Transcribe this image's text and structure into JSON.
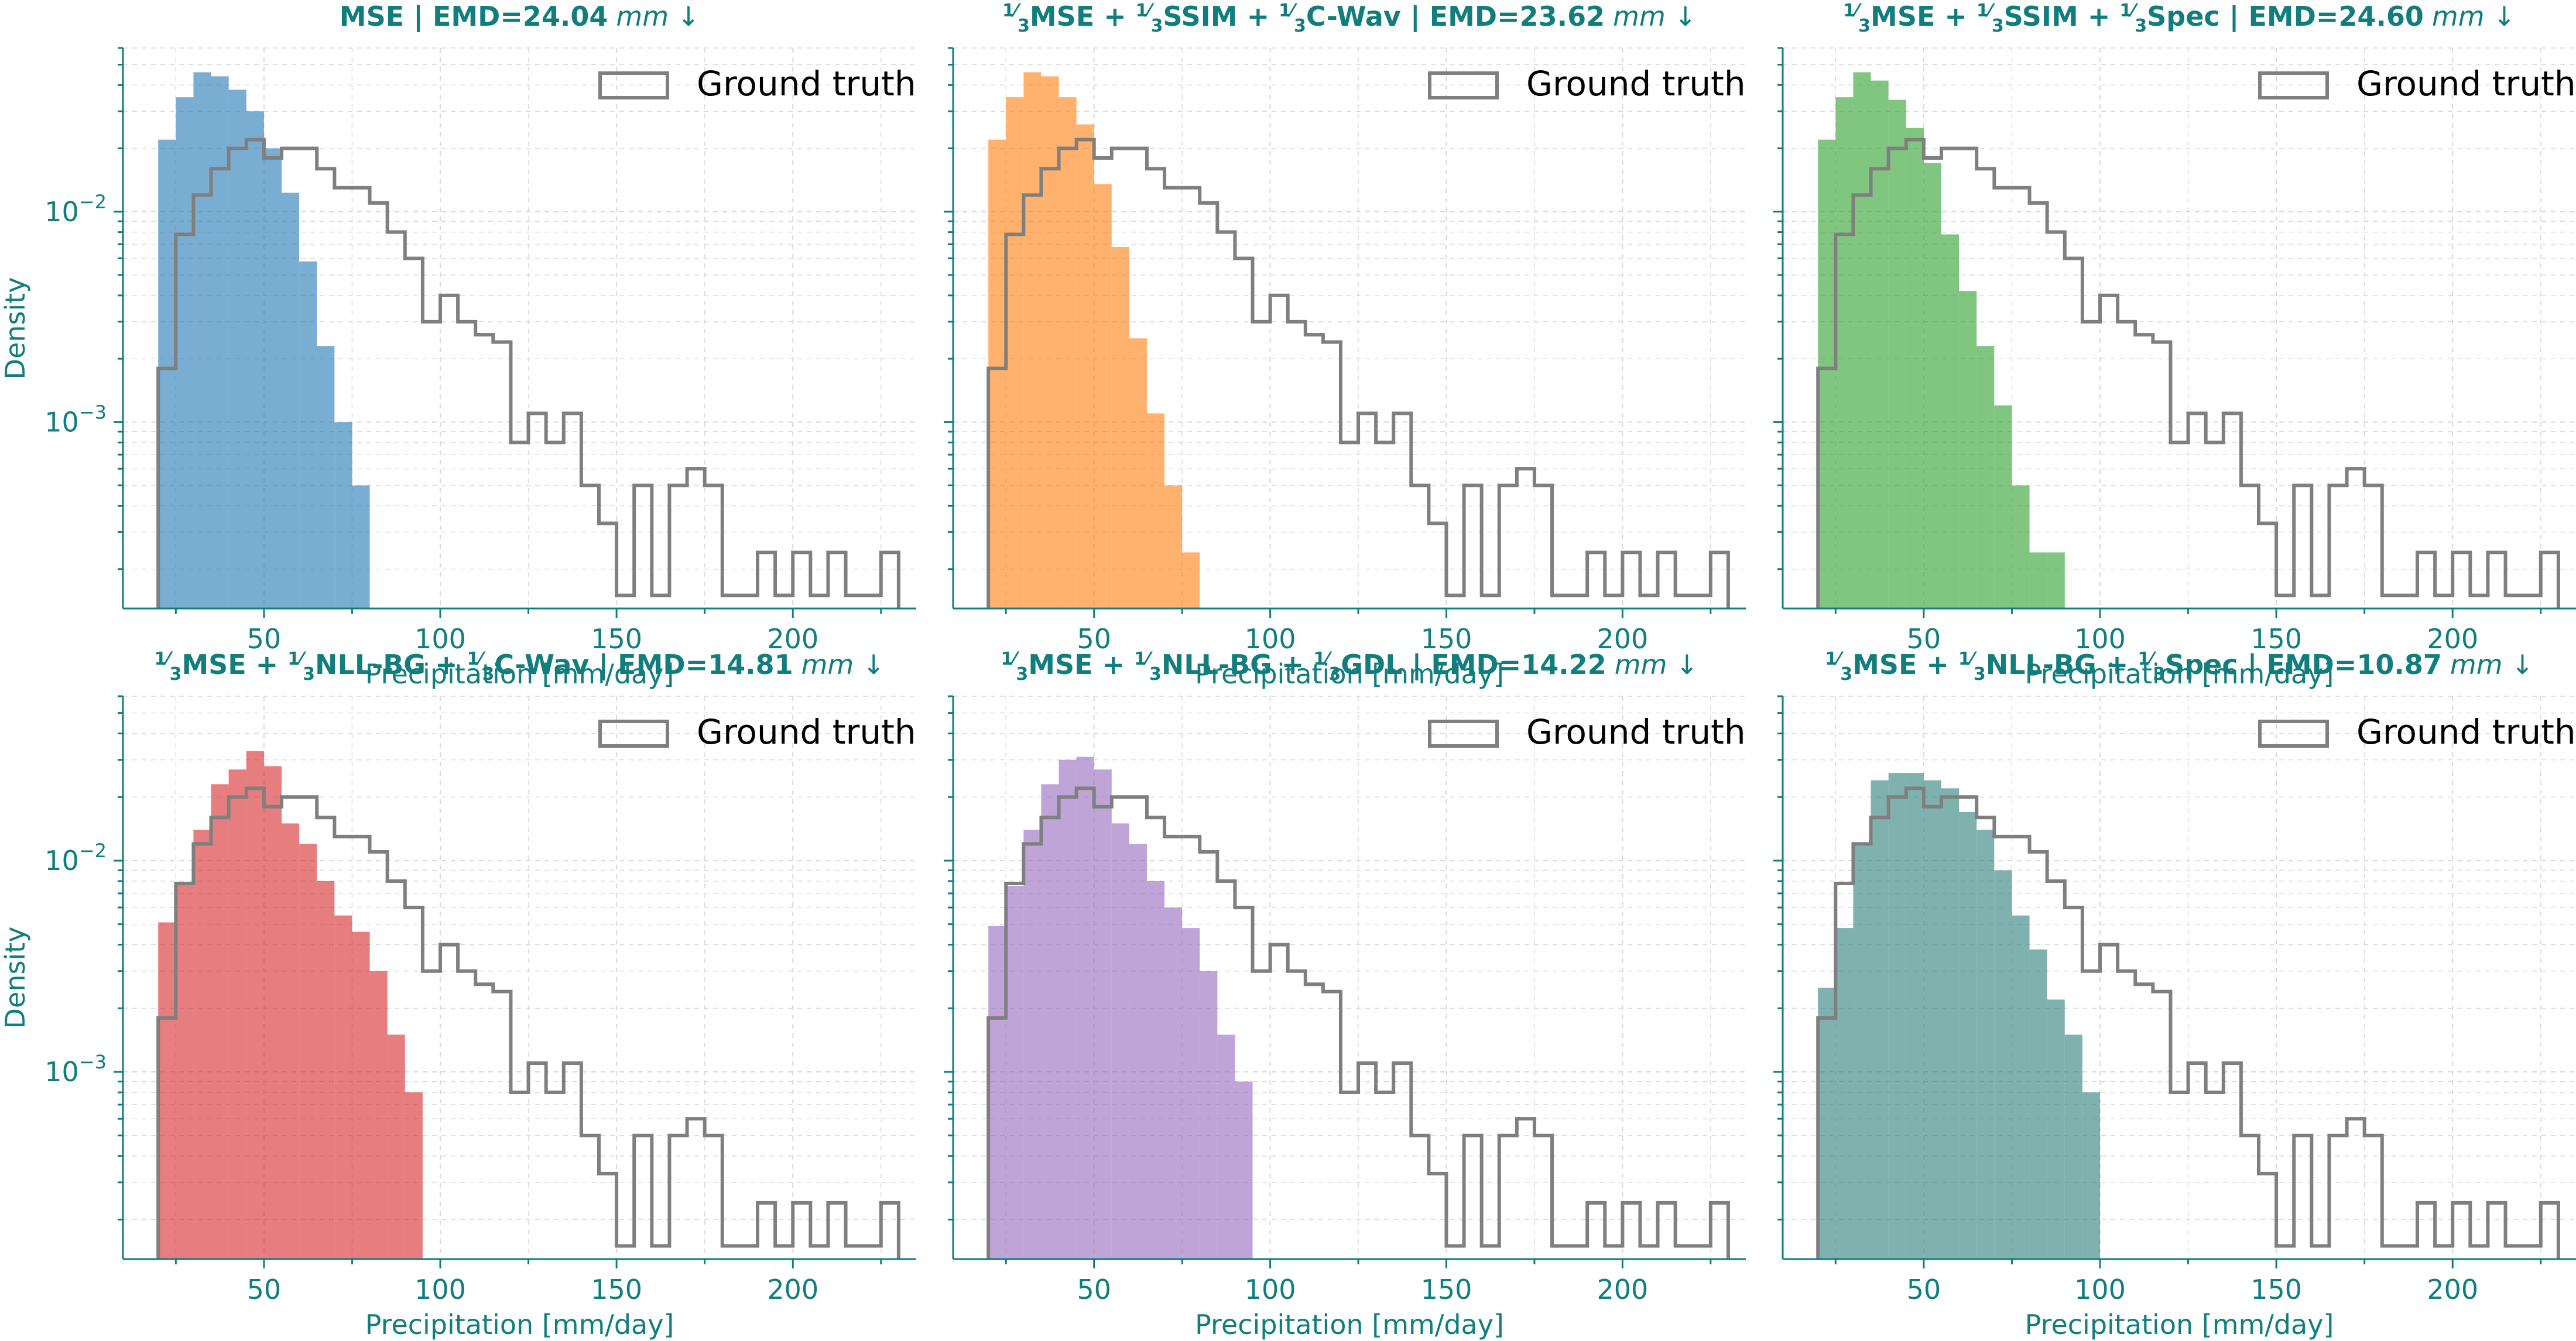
{
  "colors": {
    "axis": "#117d7d",
    "ground_truth": "#7f7f7f",
    "grid": "#d9d9d9"
  },
  "chart_data": [
    {
      "type": "histogram",
      "title": "MSE | EMD=24.04",
      "title_unit": "mm ↓",
      "series_color": "#1f77b4",
      "legend": "Ground truth",
      "xlabel": "Precipitation [mm/day]",
      "ylabel": "Density",
      "x_ticks": [
        50,
        100,
        150,
        200
      ],
      "y_ticks": [
        {
          "value": 0.01,
          "base": "10",
          "exp": "−2"
        },
        {
          "value": 0.001,
          "base": "10",
          "exp": "−3"
        }
      ],
      "xlim": [
        10,
        235
      ],
      "ylim": [
        0.00013,
        0.06
      ],
      "yscale": "log",
      "bin_edges": [
        20,
        25,
        30,
        35,
        40,
        45,
        50,
        55,
        60,
        65,
        70,
        75,
        80
      ],
      "values": [
        0.022,
        0.035,
        0.046,
        0.044,
        0.038,
        0.03,
        0.02,
        0.0123,
        0.0058,
        0.0023,
        0.001,
        0.0005,
        0.00033
      ]
    },
    {
      "type": "histogram",
      "title_parts": [
        "MSE + ",
        "SSIM + ",
        "C-Wav | EMD=23.62"
      ],
      "title_unit": "mm ↓",
      "series_color": "#ff7f0e",
      "legend": "Ground truth",
      "xlabel": "Precipitation [mm/day]",
      "ylabel": "",
      "x_ticks": [
        50,
        100,
        150,
        200
      ],
      "xlim": [
        10,
        235
      ],
      "ylim": [
        0.00013,
        0.06
      ],
      "yscale": "log",
      "bin_edges": [
        20,
        25,
        30,
        35,
        40,
        45,
        50,
        55,
        60,
        65,
        70,
        75,
        80
      ],
      "values": [
        0.022,
        0.035,
        0.046,
        0.044,
        0.035,
        0.026,
        0.0135,
        0.0068,
        0.0025,
        0.0011,
        0.0005,
        0.00024,
        0.00033
      ]
    },
    {
      "type": "histogram",
      "title_parts": [
        "MSE + ",
        "SSIM + ",
        "Spec | EMD=24.60"
      ],
      "title_unit": "mm ↓",
      "series_color": "#2ca02c",
      "legend": "Ground truth",
      "xlabel": "Precipitation [mm/day]",
      "ylabel": "",
      "x_ticks": [
        50,
        100,
        150,
        200
      ],
      "xlim": [
        10,
        235
      ],
      "ylim": [
        0.00013,
        0.06
      ],
      "yscale": "log",
      "bin_edges": [
        20,
        25,
        30,
        35,
        40,
        45,
        50,
        55,
        60,
        65,
        70,
        75,
        80,
        85,
        90
      ],
      "values": [
        0.022,
        0.035,
        0.046,
        0.042,
        0.034,
        0.025,
        0.017,
        0.0078,
        0.0042,
        0.0023,
        0.0012,
        0.0005,
        0.00024,
        0.00024
      ]
    },
    {
      "type": "histogram",
      "title_parts": [
        "MSE + ",
        "NLL-BG + ",
        "C-Wav | EMD=14.81"
      ],
      "title_unit": "mm ↓",
      "series_color": "#d62728",
      "legend": "Ground truth",
      "xlabel": "Precipitation [mm/day]",
      "ylabel": "Density",
      "x_ticks": [
        50,
        100,
        150,
        200
      ],
      "y_ticks": [
        {
          "value": 0.01,
          "base": "10",
          "exp": "−2"
        },
        {
          "value": 0.001,
          "base": "10",
          "exp": "−3"
        }
      ],
      "xlim": [
        10,
        235
      ],
      "ylim": [
        0.00013,
        0.06
      ],
      "yscale": "log",
      "bin_edges": [
        20,
        25,
        30,
        35,
        40,
        45,
        50,
        55,
        60,
        65,
        70,
        75,
        80,
        85,
        90,
        95
      ],
      "values": [
        0.0051,
        0.0078,
        0.014,
        0.023,
        0.027,
        0.033,
        0.028,
        0.015,
        0.012,
        0.008,
        0.0055,
        0.0046,
        0.003,
        0.0015,
        0.0008
      ]
    },
    {
      "type": "histogram",
      "title_parts": [
        "MSE + ",
        "NLL-BG + ",
        "GDL | EMD=14.22"
      ],
      "title_unit": "mm ↓",
      "series_color": "#9467bd",
      "legend": "Ground truth",
      "xlabel": "Precipitation [mm/day]",
      "ylabel": "",
      "x_ticks": [
        50,
        100,
        150,
        200
      ],
      "xlim": [
        10,
        235
      ],
      "ylim": [
        0.00013,
        0.06
      ],
      "yscale": "log",
      "bin_edges": [
        20,
        25,
        30,
        35,
        40,
        45,
        50,
        55,
        60,
        65,
        70,
        75,
        80,
        85,
        90,
        95
      ],
      "values": [
        0.0049,
        0.0076,
        0.014,
        0.023,
        0.03,
        0.031,
        0.027,
        0.015,
        0.012,
        0.008,
        0.006,
        0.0048,
        0.003,
        0.0015,
        0.0009
      ]
    },
    {
      "type": "histogram",
      "title_parts": [
        "MSE + ",
        "NLL-BG + ",
        "Spec | EMD=10.87"
      ],
      "title_unit": "mm ↓",
      "series_color": "#2a7e7a",
      "legend": "Ground truth",
      "xlabel": "Precipitation [mm/day]",
      "ylabel": "",
      "x_ticks": [
        50,
        100,
        150,
        200
      ],
      "xlim": [
        10,
        235
      ],
      "ylim": [
        0.00013,
        0.06
      ],
      "yscale": "log",
      "bin_edges": [
        20,
        25,
        30,
        35,
        40,
        45,
        50,
        55,
        60,
        65,
        70,
        75,
        80,
        85,
        90,
        95,
        100
      ],
      "values": [
        0.0025,
        0.0048,
        0.012,
        0.024,
        0.026,
        0.026,
        0.024,
        0.022,
        0.017,
        0.014,
        0.009,
        0.0055,
        0.0038,
        0.0022,
        0.0015,
        0.0008
      ]
    }
  ],
  "ground_truth": {
    "bin_edges": [
      20,
      25,
      30,
      35,
      40,
      45,
      50,
      55,
      60,
      65,
      70,
      75,
      80,
      85,
      90,
      95,
      100,
      105,
      110,
      115,
      120,
      125,
      130,
      135,
      140,
      145,
      150,
      155,
      160,
      165,
      170,
      175,
      180,
      185,
      190,
      195,
      200,
      205,
      210,
      215,
      220,
      225,
      230
    ],
    "values": [
      0.0018,
      0.0078,
      0.012,
      0.016,
      0.02,
      0.022,
      0.018,
      0.02,
      0.02,
      0.016,
      0.013,
      0.013,
      0.011,
      0.008,
      0.006,
      0.003,
      0.004,
      0.003,
      0.0026,
      0.0024,
      0.0008,
      0.0011,
      0.0008,
      0.0011,
      0.0005,
      0.00033,
      0.00015,
      0.0005,
      0.00015,
      0.0005,
      0.0006,
      0.0005,
      0.00015,
      0.00015,
      0.00024,
      0.00015,
      0.00024,
      0.00015,
      0.00024,
      0.00015,
      0.00015,
      0.00024
    ]
  }
}
